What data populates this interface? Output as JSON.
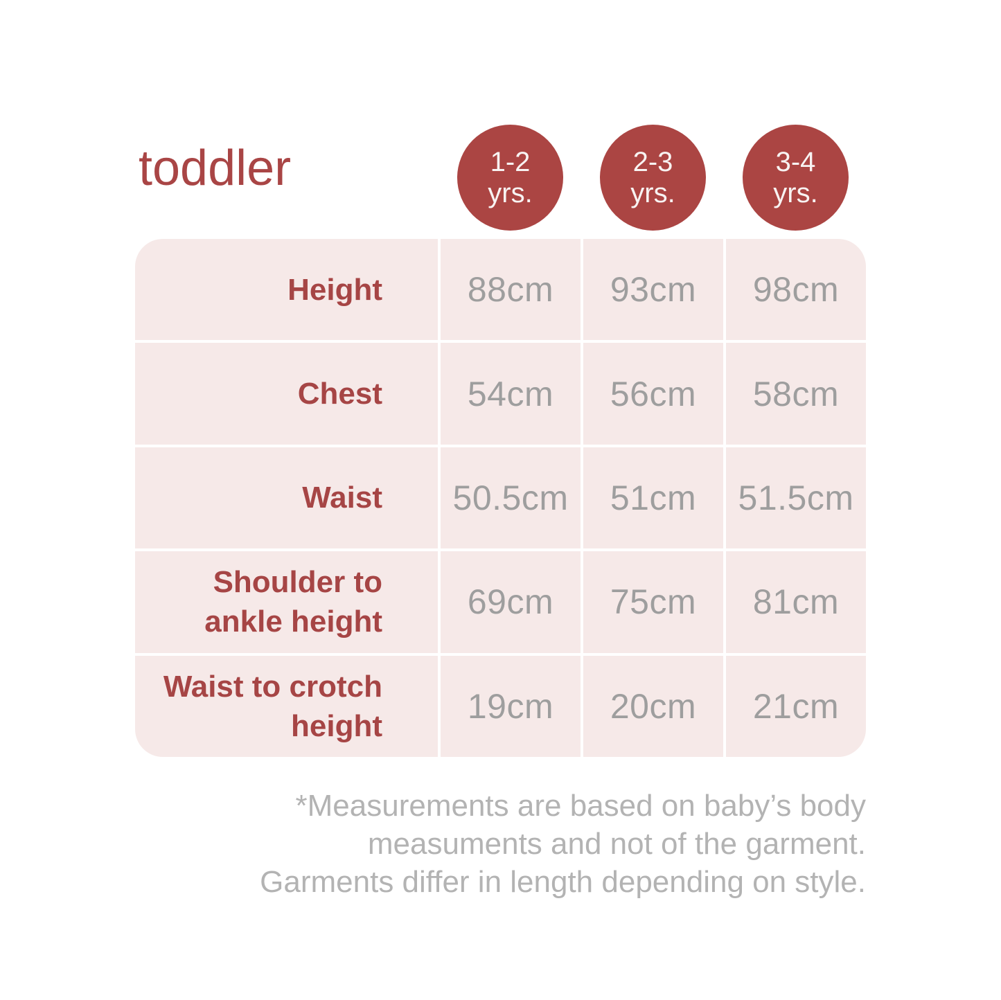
{
  "chart_data": {
    "type": "table",
    "title": "toddler",
    "columns": [
      "1-2 yrs.",
      "2-3 yrs.",
      "3-4 yrs."
    ],
    "rows": [
      {
        "label": "Height",
        "values": [
          "88cm",
          "93cm",
          "98cm"
        ]
      },
      {
        "label": "Chest",
        "values": [
          "54cm",
          "56cm",
          "58cm"
        ]
      },
      {
        "label": "Waist",
        "values": [
          "50.5cm",
          "51cm",
          "51.5cm"
        ]
      },
      {
        "label": "Shoulder to ankle height",
        "values": [
          "69cm",
          "75cm",
          "81cm"
        ]
      },
      {
        "label": "Waist to crotch height",
        "values": [
          "19cm",
          "20cm",
          "21cm"
        ]
      }
    ],
    "footnote": "*Measurements are based on baby’s body measuments and not of the garment. Garments differ in length depending on style.",
    "layout_hints": {
      "grid": "white 4px dividers",
      "value_unit": "cm",
      "legend_position": "none"
    }
  },
  "header": {
    "title": "toddler",
    "age_circles": [
      {
        "range": "1-2",
        "unit": "yrs."
      },
      {
        "range": "2-3",
        "unit": "yrs."
      },
      {
        "range": "3-4",
        "unit": "yrs."
      }
    ]
  },
  "footnote": {
    "lines": [
      "*Measurements are based on baby’s body",
      "measuments and not of the garment.",
      "Garments differ in length depending on style."
    ]
  },
  "colors": {
    "accent_red": "#A94545",
    "circle_red": "#AB4543",
    "table_pink": "#F6E9E8",
    "divider_white": "#FFFFFF",
    "value_gray": "#9E9E9E",
    "note_gray": "#B3B3B3",
    "background": "#FFFFFF"
  }
}
